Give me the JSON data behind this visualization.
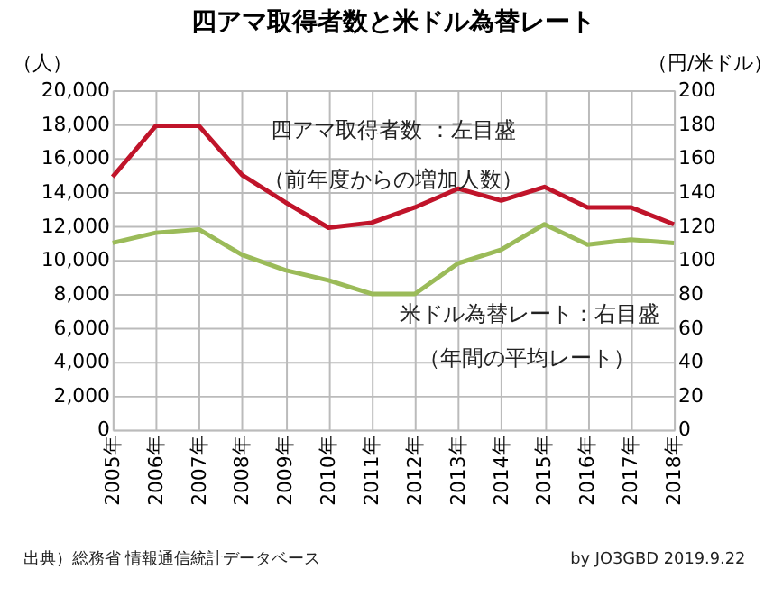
{
  "chart_data": {
    "type": "line",
    "title": "四アマ取得者数と米ドル為替レート",
    "ylabel": "（人）",
    "y2label": "（円/米ドル）",
    "categories": [
      "2005年",
      "2006年",
      "2007年",
      "2008年",
      "2009年",
      "2010年",
      "2011年",
      "2012年",
      "2013年",
      "2014年",
      "2015年",
      "2016年",
      "2017年",
      "2018年"
    ],
    "series": [
      {
        "color": "#c0142a",
        "values": [
          14900,
          17900,
          17900,
          15000,
          13400,
          11900,
          12200,
          13100,
          14200,
          13500,
          14300,
          13100,
          13100,
          12100
        ]
      },
      {
        "color": "#9bbb59",
        "axis": "y2",
        "values": [
          110,
          116,
          118,
          103,
          94,
          88,
          80,
          80,
          98,
          106,
          121,
          109,
          112,
          110
        ]
      }
    ],
    "ylim": [
      0,
      20000
    ],
    "yticks": [
      0,
      {
        "value": 2000,
        "label": "2,000"
      },
      {
        "value": 4000,
        "label": "4,000"
      },
      {
        "value": 6000,
        "label": "6,000"
      },
      {
        "value": 8000,
        "label": "8,000"
      },
      {
        "value": 10000,
        "label": "10,000"
      },
      {
        "value": 12000,
        "label": "12,000"
      },
      {
        "value": 14000,
        "label": "14,000"
      },
      {
        "value": 16000,
        "label": "16,000"
      },
      {
        "value": 18000,
        "label": "18,000"
      },
      {
        "value": 20000,
        "label": "20,000"
      }
    ],
    "y2lim": [
      0,
      200
    ],
    "y2ticks": [
      0,
      20,
      40,
      60,
      80,
      100,
      120,
      140,
      160,
      180,
      200
    ],
    "grid": true,
    "marker": "none",
    "line_style": "solid",
    "annotations": [
      "四アマ取得者数 ：左目盛",
      "（前年度からの増加人数）",
      "米ドル為替レート：右目盛",
      "（年間の平均レート）",
      "出典）総務省 情報通信統計データベース",
      "by JO3GBD 2019.9.22"
    ]
  }
}
